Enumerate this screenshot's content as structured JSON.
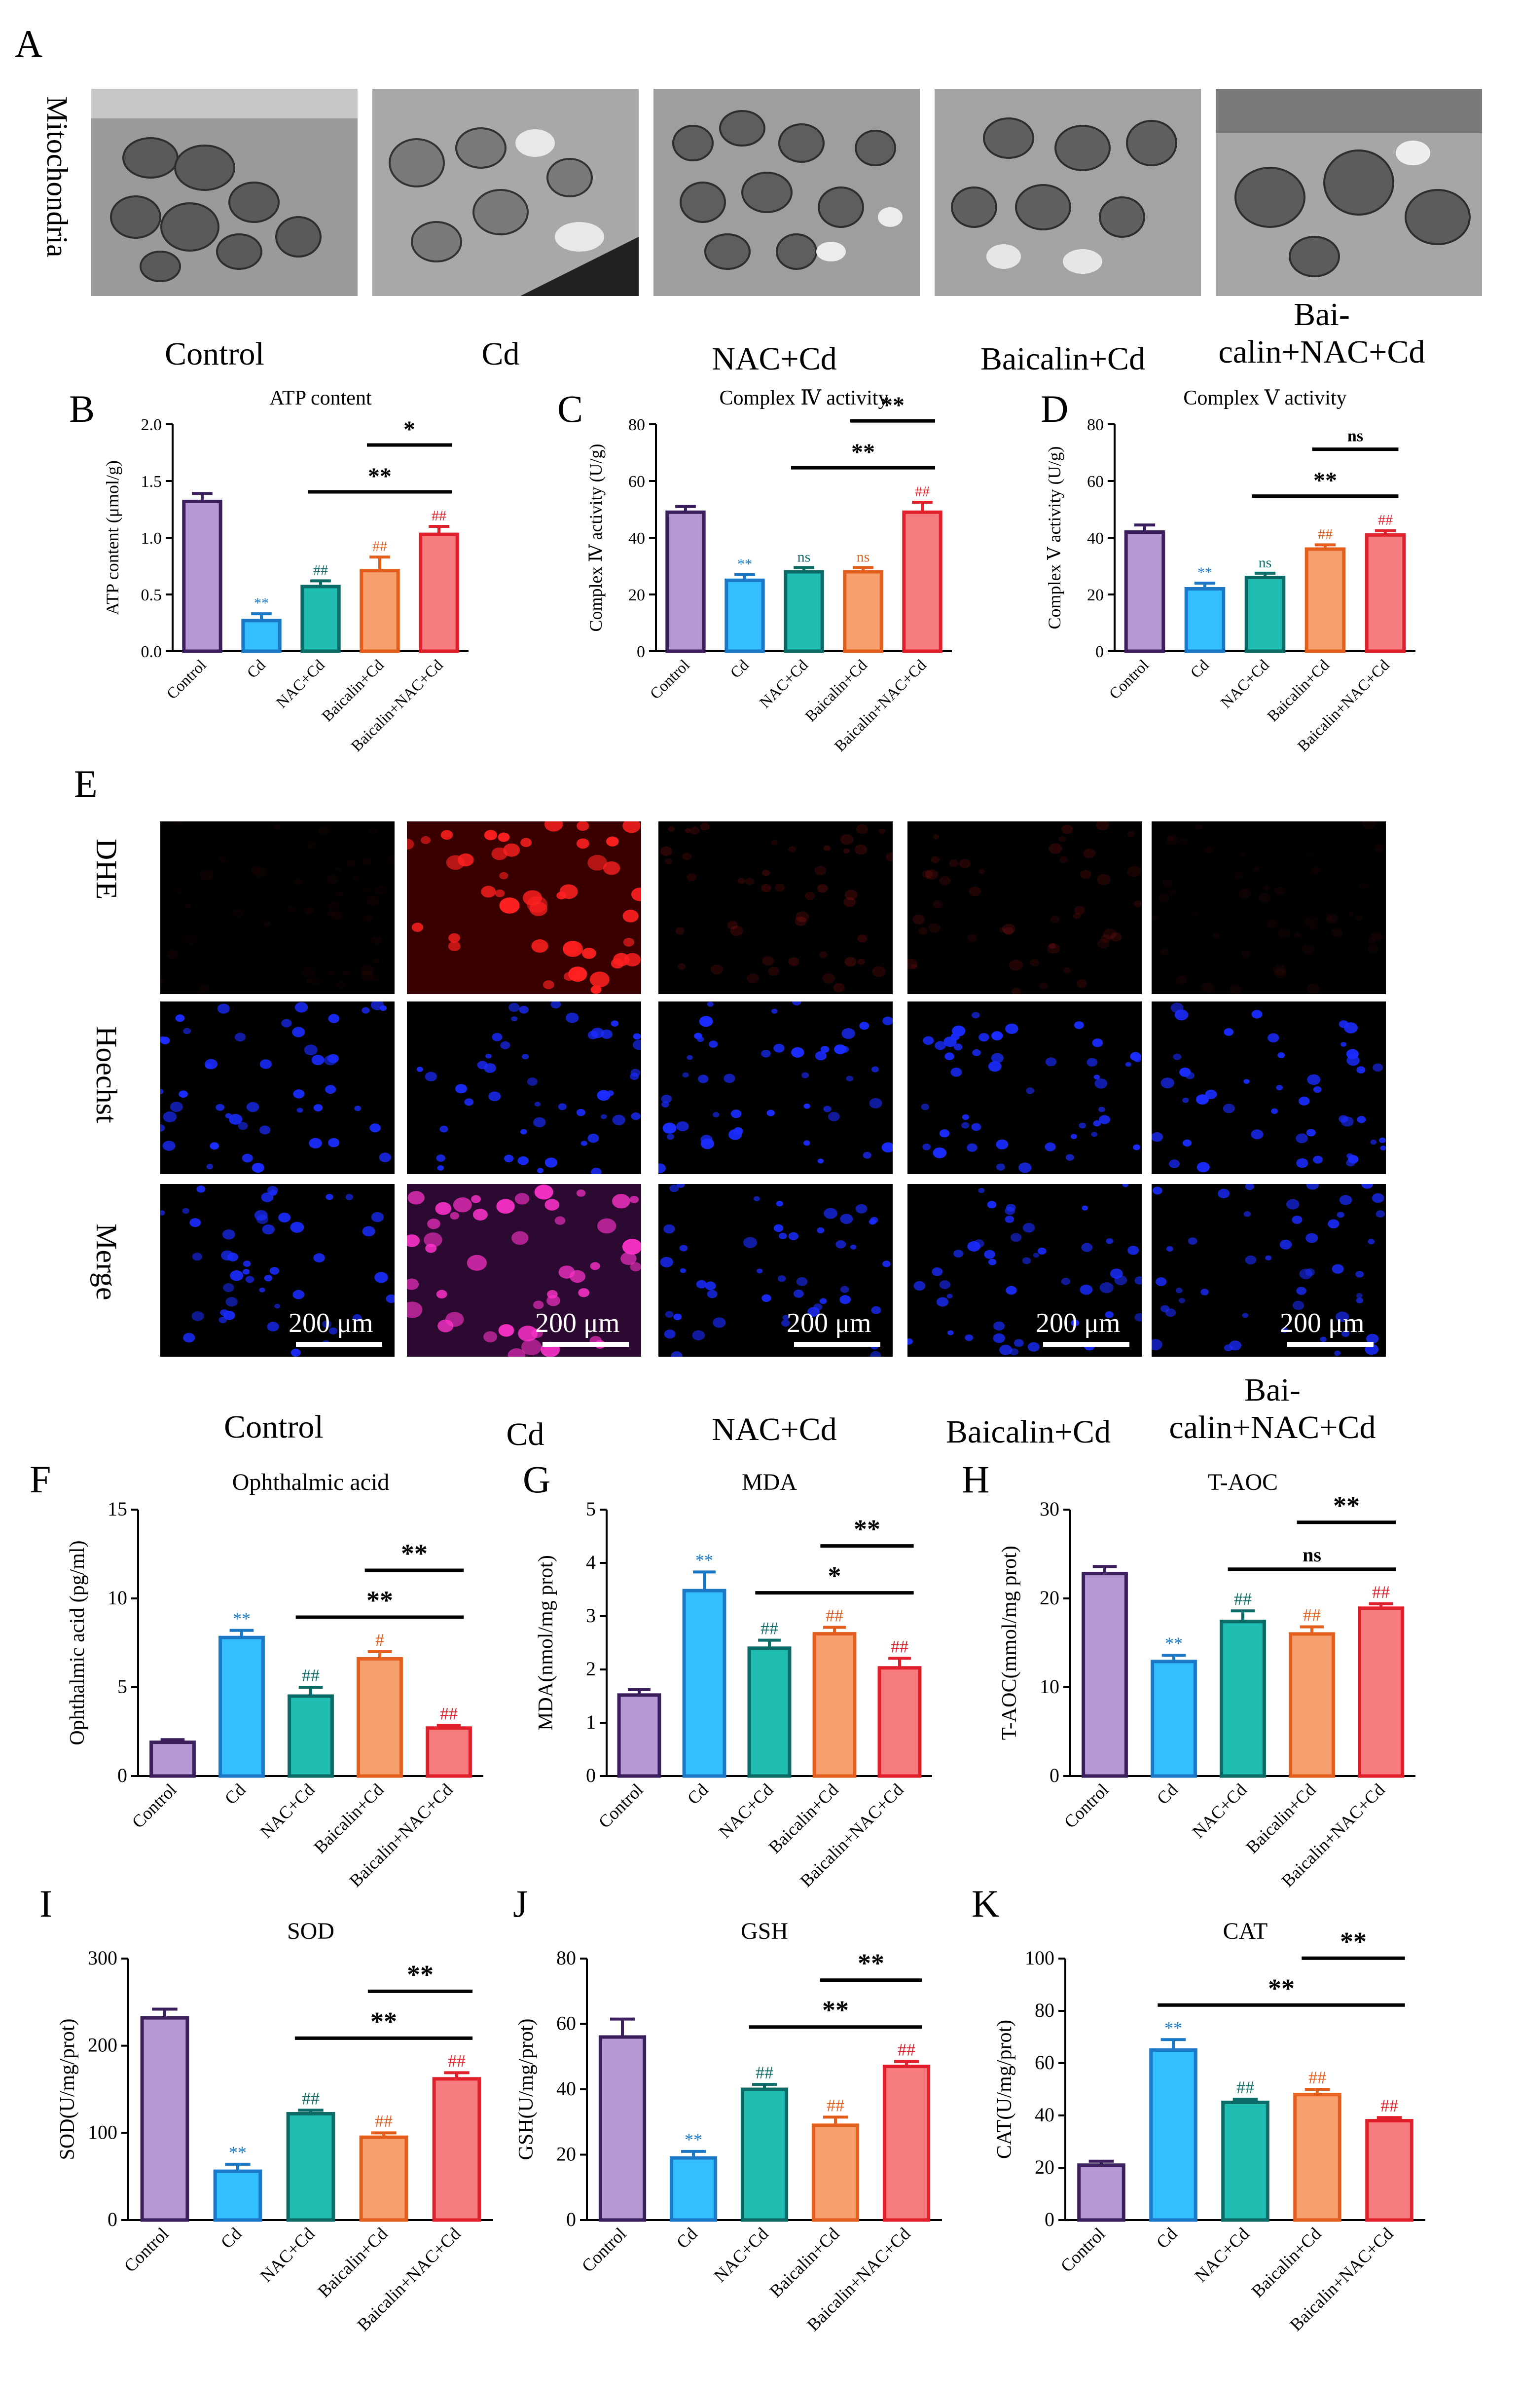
{
  "panel_letters": {
    "A": "A",
    "B": "B",
    "C": "C",
    "D": "D",
    "E": "E",
    "F": "F",
    "G": "G",
    "H": "H",
    "I": "I",
    "J": "J",
    "K": "K"
  },
  "panel_a": {
    "row_label": "Mitochondria",
    "columns": [
      "Control",
      "Cd",
      "NAC+Cd",
      "Baicalin+Cd",
      "Bai-\ncalin+NAC+Cd"
    ]
  },
  "panel_e": {
    "rows": [
      "DHE",
      "Hoechst",
      "Merge"
    ],
    "columns": [
      "Control",
      "Cd",
      "NAC+Cd",
      "Baicalin+Cd",
      "Bai-\ncalin+NAC+Cd"
    ],
    "scale_bar": "200 μm"
  },
  "colors": {
    "fill": [
      "#b59ad6",
      "#33bfff",
      "#1fbdb2",
      "#f7a06e",
      "#f77c80"
    ],
    "stroke": [
      "#3a1f5c",
      "#1a78c7",
      "#0c6b66",
      "#e35f1e",
      "#e0202b"
    ],
    "dhe": "#ff2020",
    "hoechst": "#1a2cff",
    "merge": "#ff33cc"
  },
  "chart_data": [
    {
      "id": "B",
      "type": "bar",
      "title": "ATP content",
      "ylabel": "ATP content (μmol/g)",
      "ylim": [
        0,
        2.0
      ],
      "yticks": [
        "0.0",
        "0.5",
        "1.0",
        "1.5",
        "2.0"
      ],
      "categories": [
        "Control",
        "Cd",
        "NAC+Cd",
        "Baicalin+Cd",
        "Baicalin+NAC+Cd"
      ],
      "values": [
        1.32,
        0.27,
        0.57,
        0.71,
        1.03
      ],
      "errors": [
        0.07,
        0.06,
        0.05,
        0.12,
        0.07
      ],
      "annotations": [
        "",
        "**",
        "##",
        "##",
        "##"
      ],
      "comparisons": [
        {
          "from": 2,
          "to": 4,
          "label": "**"
        },
        {
          "from": 3,
          "to": 4,
          "label": "*"
        }
      ]
    },
    {
      "id": "C",
      "type": "bar",
      "title": "Complex Ⅳ activity",
      "ylabel": "Complex Ⅳ activity (U/g)",
      "ylim": [
        0,
        80
      ],
      "yticks": [
        "0",
        "20",
        "40",
        "60",
        "80"
      ],
      "categories": [
        "Control",
        "Cd",
        "NAC+Cd",
        "Baicalin+Cd",
        "Baicalin+NAC+Cd"
      ],
      "values": [
        49,
        25,
        28,
        28,
        49
      ],
      "errors": [
        2,
        2,
        1.5,
        1.5,
        3.5
      ],
      "annotations": [
        "",
        "**",
        "ns",
        "ns",
        "##"
      ],
      "comparisons": [
        {
          "from": 2,
          "to": 4,
          "label": "**"
        },
        {
          "from": 3,
          "to": 4,
          "label": "**"
        }
      ]
    },
    {
      "id": "D",
      "type": "bar",
      "title": "Complex Ⅴ activity",
      "ylabel": "Complex Ⅴ activity (U/g)",
      "ylim": [
        0,
        80
      ],
      "yticks": [
        "0",
        "20",
        "40",
        "60",
        "80"
      ],
      "categories": [
        "Control",
        "Cd",
        "NAC+Cd",
        "Baicalin+Cd",
        "Baicalin+NAC+Cd"
      ],
      "values": [
        42,
        22,
        26,
        36,
        41
      ],
      "errors": [
        2.5,
        2,
        1.5,
        1.5,
        1.5
      ],
      "annotations": [
        "",
        "**",
        "ns",
        "##",
        "##"
      ],
      "comparisons": [
        {
          "from": 2,
          "to": 4,
          "label": "**"
        },
        {
          "from": 3,
          "to": 4,
          "label": "ns"
        }
      ]
    },
    {
      "id": "F",
      "type": "bar",
      "title": "Ophthalmic acid",
      "ylabel": "Ophthalmic acid (pg/ml)",
      "ylim": [
        0,
        15
      ],
      "yticks": [
        "0",
        "5",
        "10",
        "15"
      ],
      "categories": [
        "Control",
        "Cd",
        "NAC+Cd",
        "Baicalin+Cd",
        "Baicalin+NAC+Cd"
      ],
      "values": [
        1.9,
        7.8,
        4.5,
        6.6,
        2.7
      ],
      "errors": [
        0.15,
        0.4,
        0.5,
        0.4,
        0.15
      ],
      "annotations": [
        "",
        "**",
        "##",
        "#",
        "##"
      ],
      "comparisons": [
        {
          "from": 2,
          "to": 4,
          "label": "**"
        },
        {
          "from": 3,
          "to": 4,
          "label": "**"
        }
      ]
    },
    {
      "id": "G",
      "type": "bar",
      "title": "MDA",
      "ylabel": "MDA(nmol/mg prot)",
      "ylim": [
        0,
        5
      ],
      "yticks": [
        "0",
        "1",
        "2",
        "3",
        "4",
        "5"
      ],
      "categories": [
        "Control",
        "Cd",
        "NAC+Cd",
        "Baicalin+Cd",
        "Baicalin+NAC+Cd"
      ],
      "values": [
        1.52,
        3.48,
        2.4,
        2.67,
        2.03
      ],
      "errors": [
        0.1,
        0.35,
        0.15,
        0.12,
        0.18
      ],
      "annotations": [
        "",
        "**",
        "##",
        "##",
        "##"
      ],
      "comparisons": [
        {
          "from": 2,
          "to": 4,
          "label": "*"
        },
        {
          "from": 3,
          "to": 4,
          "label": "**"
        }
      ]
    },
    {
      "id": "H",
      "type": "bar",
      "title": "T-AOC",
      "ylabel": "T-AOC(mmol/mg prot)",
      "ylim": [
        0,
        30
      ],
      "yticks": [
        "0",
        "10",
        "20",
        "30"
      ],
      "categories": [
        "Control",
        "Cd",
        "NAC+Cd",
        "Baicalin+Cd",
        "Baicalin+NAC+Cd"
      ],
      "values": [
        22.8,
        12.9,
        17.4,
        16.0,
        18.9
      ],
      "errors": [
        0.8,
        0.7,
        1.2,
        0.8,
        0.5
      ],
      "annotations": [
        "",
        "**",
        "##",
        "##",
        "##"
      ],
      "comparisons": [
        {
          "from": 2,
          "to": 4,
          "label": "ns"
        },
        {
          "from": 3,
          "to": 4,
          "label": "**"
        }
      ]
    },
    {
      "id": "I",
      "type": "bar",
      "title": "SOD",
      "ylabel": "SOD(U/mg/prot)",
      "ylim": [
        0,
        300
      ],
      "yticks": [
        "0",
        "100",
        "200",
        "300"
      ],
      "categories": [
        "Control",
        "Cd",
        "NAC+Cd",
        "Baicalin+Cd",
        "Baicalin+NAC+Cd"
      ],
      "values": [
        232,
        56,
        122,
        95,
        162
      ],
      "errors": [
        10,
        8,
        4,
        5,
        7
      ],
      "annotations": [
        "",
        "**",
        "##",
        "##",
        "##"
      ],
      "comparisons": [
        {
          "from": 2,
          "to": 4,
          "label": "**"
        },
        {
          "from": 3,
          "to": 4,
          "label": "**"
        }
      ]
    },
    {
      "id": "J",
      "type": "bar",
      "title": "GSH",
      "ylabel": "GSH(U/mg/prot)",
      "ylim": [
        0,
        80
      ],
      "yticks": [
        "0",
        "20",
        "40",
        "60",
        "80"
      ],
      "categories": [
        "Control",
        "Cd",
        "NAC+Cd",
        "Baicalin+Cd",
        "Baicalin+NAC+Cd"
      ],
      "values": [
        56,
        19,
        40,
        29,
        47
      ],
      "errors": [
        5.5,
        2,
        1.5,
        2.5,
        1.5
      ],
      "annotations": [
        "",
        "**",
        "##",
        "##",
        "##"
      ],
      "comparisons": [
        {
          "from": 2,
          "to": 4,
          "label": "**"
        },
        {
          "from": 3,
          "to": 4,
          "label": "**"
        }
      ]
    },
    {
      "id": "K",
      "type": "bar",
      "title": "CAT",
      "ylabel": "CAT(U/mg/prot)",
      "ylim": [
        0,
        100
      ],
      "yticks": [
        "0",
        "20",
        "40",
        "60",
        "80",
        "100"
      ],
      "categories": [
        "Control",
        "Cd",
        "NAC+Cd",
        "Baicalin+Cd",
        "Baicalin+NAC+Cd"
      ],
      "values": [
        21,
        65,
        45,
        48,
        38
      ],
      "errors": [
        1.5,
        4,
        1.2,
        2,
        1.2
      ],
      "annotations": [
        "",
        "**",
        "##",
        "##",
        "##"
      ],
      "comparisons": [
        {
          "from": 1,
          "to": 4,
          "label": "**"
        },
        {
          "from": 3,
          "to": 4,
          "label": "**"
        }
      ]
    }
  ]
}
